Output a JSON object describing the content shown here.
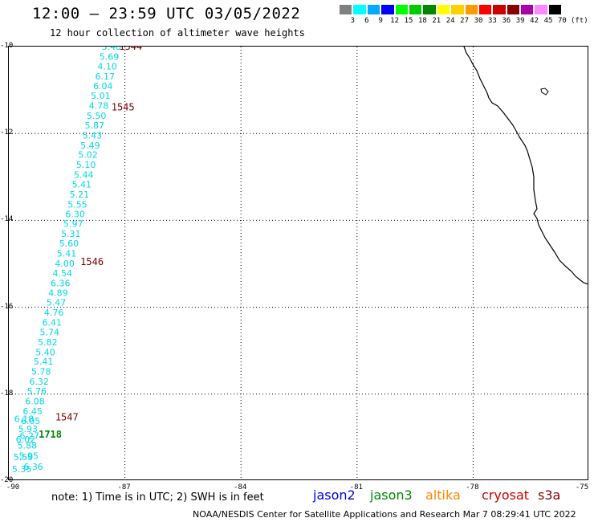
{
  "header": {
    "title": "12:00 – 23:59 UTC 03/05/2022",
    "subtitle": "12 hour collection of altimeter wave heights"
  },
  "legend": {
    "colors": [
      "#808080",
      "#00ffff",
      "#00aaff",
      "#0000ff",
      "#00ff00",
      "#00cc00",
      "#008800",
      "#ffff00",
      "#ffd000",
      "#ff9900",
      "#ff0000",
      "#cc0000",
      "#880000",
      "#aa00aa",
      "#ff88ff",
      "#000000"
    ],
    "labels": [
      "3",
      "6",
      "9",
      "12",
      "15",
      "18",
      "21",
      "24",
      "27",
      "30",
      "33",
      "36",
      "39",
      "42",
      "45",
      "70",
      "(ft)"
    ]
  },
  "map": {
    "lat_range": [
      -20,
      -10
    ],
    "lon_range": [
      -90,
      -75
    ],
    "lat_ticks": [
      "-10",
      "-12",
      "-14",
      "-16",
      "-18",
      "-20"
    ],
    "lon_ticks": [
      "-90",
      "-87",
      "-84",
      "-81",
      "-78",
      "-75"
    ]
  },
  "track_colors": {
    "wave": "#00d8e8",
    "pass": "#7a0000",
    "jason3_pass": "#008800"
  },
  "wave_points": [
    {
      "lat": -10.0,
      "lon": -87.6,
      "v": "5.40"
    },
    {
      "lat": -10.23,
      "lon": -87.66,
      "v": "5.69"
    },
    {
      "lat": -10.45,
      "lon": -87.71,
      "v": "4.10"
    },
    {
      "lat": -10.68,
      "lon": -87.77,
      "v": "6.17"
    },
    {
      "lat": -10.91,
      "lon": -87.82,
      "v": "6.04"
    },
    {
      "lat": -11.13,
      "lon": -87.88,
      "v": "5.01"
    },
    {
      "lat": -11.36,
      "lon": -87.93,
      "v": "4.78"
    },
    {
      "lat": -11.59,
      "lon": -87.99,
      "v": "5.50"
    },
    {
      "lat": -11.81,
      "lon": -88.04,
      "v": "5.87"
    },
    {
      "lat": -12.04,
      "lon": -88.1,
      "v": "5.43"
    },
    {
      "lat": -12.27,
      "lon": -88.15,
      "v": "5.49"
    },
    {
      "lat": -12.49,
      "lon": -88.21,
      "v": "5.02"
    },
    {
      "lat": -12.72,
      "lon": -88.26,
      "v": "5.10"
    },
    {
      "lat": -12.95,
      "lon": -88.32,
      "v": "5.44"
    },
    {
      "lat": -13.17,
      "lon": -88.37,
      "v": "5.41"
    },
    {
      "lat": -13.4,
      "lon": -88.43,
      "v": "5.21"
    },
    {
      "lat": -13.63,
      "lon": -88.48,
      "v": "5.55"
    },
    {
      "lat": -13.85,
      "lon": -88.54,
      "v": "6.30"
    },
    {
      "lat": -14.08,
      "lon": -88.59,
      "v": "5.97"
    },
    {
      "lat": -14.31,
      "lon": -88.65,
      "v": "5.31"
    },
    {
      "lat": -14.53,
      "lon": -88.7,
      "v": "5.60"
    },
    {
      "lat": -14.76,
      "lon": -88.76,
      "v": "5.41"
    },
    {
      "lat": -14.99,
      "lon": -88.81,
      "v": "4.00"
    },
    {
      "lat": -15.21,
      "lon": -88.87,
      "v": "4.54"
    },
    {
      "lat": -15.44,
      "lon": -88.92,
      "v": "6.36"
    },
    {
      "lat": -15.67,
      "lon": -88.98,
      "v": "4.89"
    },
    {
      "lat": -15.89,
      "lon": -89.03,
      "v": "5.47"
    },
    {
      "lat": -16.12,
      "lon": -89.09,
      "v": "4.76"
    },
    {
      "lat": -16.35,
      "lon": -89.14,
      "v": "6.41"
    },
    {
      "lat": -16.57,
      "lon": -89.2,
      "v": "5.74"
    },
    {
      "lat": -16.8,
      "lon": -89.25,
      "v": "5.82"
    },
    {
      "lat": -17.03,
      "lon": -89.31,
      "v": "5.40"
    },
    {
      "lat": -17.25,
      "lon": -89.36,
      "v": "5.41"
    },
    {
      "lat": -17.48,
      "lon": -89.42,
      "v": "5.78"
    },
    {
      "lat": -17.71,
      "lon": -89.47,
      "v": "6.32"
    },
    {
      "lat": -17.93,
      "lon": -89.53,
      "v": "5.76"
    },
    {
      "lat": -18.16,
      "lon": -89.58,
      "v": "6.08"
    },
    {
      "lat": -18.39,
      "lon": -89.64,
      "v": "6.45"
    },
    {
      "lat": -18.57,
      "lon": -89.86,
      "v": "6.18"
    },
    {
      "lat": -18.61,
      "lon": -89.69,
      "v": "6.05"
    },
    {
      "lat": -18.8,
      "lon": -89.76,
      "v": "5.93"
    },
    {
      "lat": -18.96,
      "lon": -89.72,
      "v": "6.27"
    },
    {
      "lat": -19.04,
      "lon": -89.82,
      "v": "6.02"
    },
    {
      "lat": -19.18,
      "lon": -89.78,
      "v": "5.88"
    },
    {
      "lat": -19.42,
      "lon": -89.74,
      "v": "5.95"
    },
    {
      "lat": -19.45,
      "lon": -89.88,
      "v": "5.59"
    },
    {
      "lat": -19.67,
      "lon": -89.62,
      "v": "6.36"
    },
    {
      "lat": -19.72,
      "lon": -89.92,
      "v": "5.35"
    }
  ],
  "pass_labels": [
    {
      "lat": -10.0,
      "lon": -87.15,
      "v": "1544",
      "kind": "pass"
    },
    {
      "lat": -11.4,
      "lon": -87.35,
      "v": "1545",
      "kind": "pass"
    },
    {
      "lat": -14.95,
      "lon": -88.15,
      "v": "1546",
      "kind": "pass"
    },
    {
      "lat": -18.53,
      "lon": -88.8,
      "v": "1547",
      "kind": "pass"
    },
    {
      "lat": -18.93,
      "lon": -89.23,
      "v": "1718",
      "kind": "jason3_pass"
    }
  ],
  "footer": {
    "note": "note: 1) Time is in UTC; 2) SWH is in feet",
    "satellites": [
      {
        "name": "jason2",
        "color": "#0000dd"
      },
      {
        "name": "jason3",
        "color": "#008800"
      },
      {
        "name": "altika",
        "color": "#ff8800"
      },
      {
        "name": "cryosat",
        "color": "#cc0000"
      },
      {
        "name": "s3a",
        "color": "#880000"
      }
    ],
    "credit": "NOAA/NESDIS Center for Satellite Applications and Research   Mar  7 08:29:41 UTC 2022"
  }
}
